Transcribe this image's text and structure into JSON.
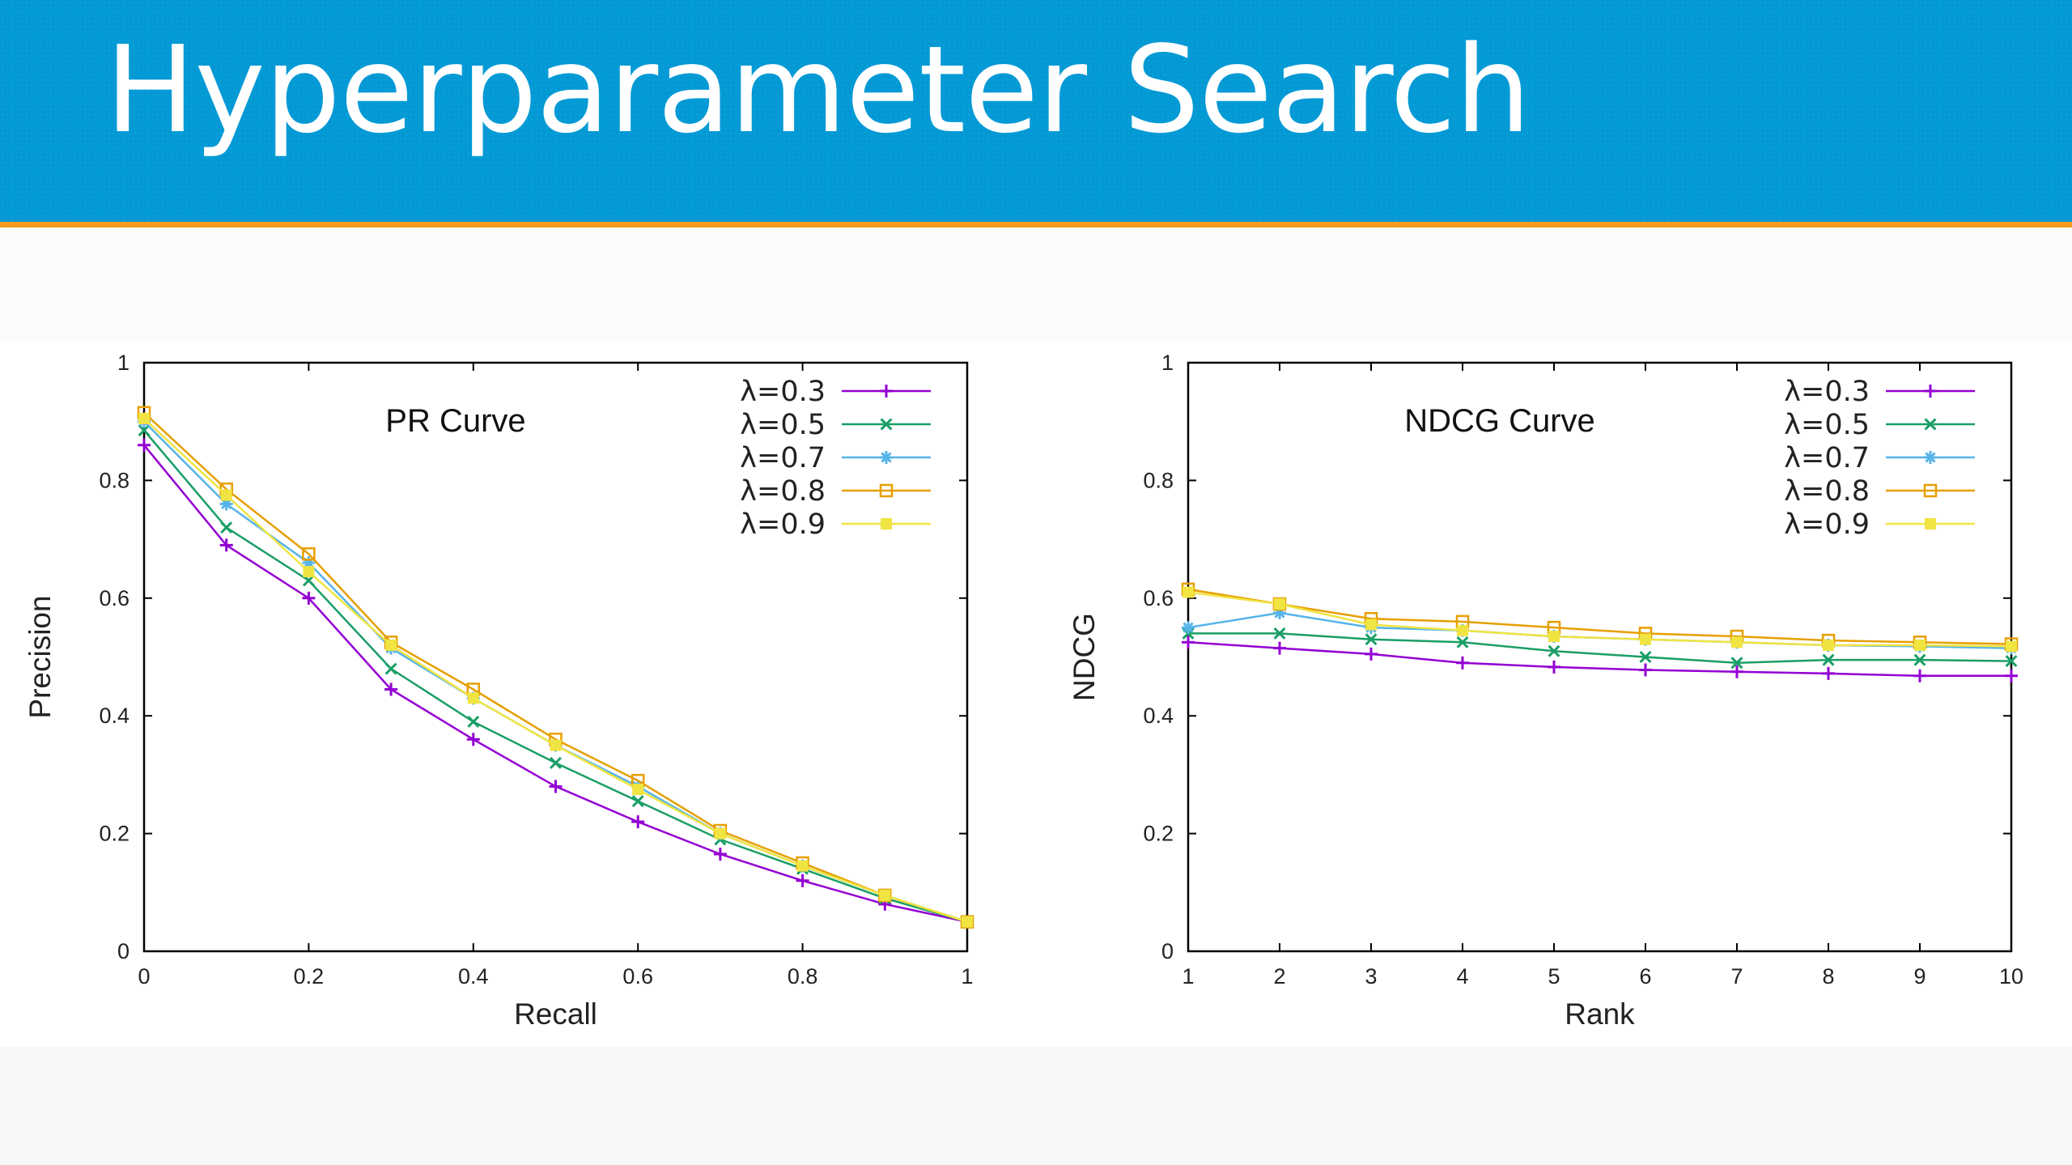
{
  "slide": {
    "title": "Hyperparameter Search"
  },
  "colors": {
    "header_bg": "#0299d5",
    "header_accent": "#f29b1c",
    "series": [
      "#9400d3",
      "#1a9e66",
      "#56b4e9",
      "#e69f00",
      "#f0e442"
    ]
  },
  "chart_data": [
    {
      "type": "line",
      "title": "PR Curve",
      "xlabel": "Recall",
      "ylabel": "Precision",
      "xlim": [
        0,
        1
      ],
      "ylim": [
        0,
        1
      ],
      "xticks": [
        "0",
        "0.2",
        "0.4",
        "0.6",
        "0.8",
        "1"
      ],
      "xtick_values": [
        0,
        0.2,
        0.4,
        0.6,
        0.8,
        1
      ],
      "yticks": [
        "0",
        "0.2",
        "0.4",
        "0.6",
        "0.8",
        "1"
      ],
      "ytick_values": [
        0,
        0.2,
        0.4,
        0.6,
        0.8,
        1
      ],
      "grid": false,
      "legend_position": "top-right",
      "x": [
        0,
        0.1,
        0.2,
        0.3,
        0.4,
        0.5,
        0.6,
        0.7,
        0.8,
        0.9,
        1.0
      ],
      "series": [
        {
          "name": "λ=0.3",
          "marker": "plus",
          "color": "#9400d3",
          "values": [
            0.86,
            0.69,
            0.6,
            0.445,
            0.36,
            0.28,
            0.22,
            0.165,
            0.12,
            0.08,
            0.05
          ]
        },
        {
          "name": "λ=0.5",
          "marker": "cross",
          "color": "#1a9e66",
          "values": [
            0.885,
            0.72,
            0.63,
            0.48,
            0.39,
            0.32,
            0.255,
            0.19,
            0.14,
            0.09,
            0.05
          ]
        },
        {
          "name": "λ=0.7",
          "marker": "star",
          "color": "#56b4e9",
          "values": [
            0.9,
            0.76,
            0.66,
            0.515,
            0.43,
            0.35,
            0.28,
            0.2,
            0.145,
            0.095,
            0.05
          ]
        },
        {
          "name": "λ=0.8",
          "marker": "open-square",
          "color": "#e69f00",
          "values": [
            0.915,
            0.785,
            0.675,
            0.525,
            0.445,
            0.36,
            0.29,
            0.205,
            0.15,
            0.095,
            0.05
          ]
        },
        {
          "name": "λ=0.9",
          "marker": "filled-square",
          "color": "#f0e442",
          "values": [
            0.905,
            0.775,
            0.645,
            0.52,
            0.43,
            0.35,
            0.275,
            0.2,
            0.145,
            0.095,
            0.05
          ]
        }
      ]
    },
    {
      "type": "line",
      "title": "NDCG Curve",
      "xlabel": "Rank",
      "ylabel": "NDCG",
      "xlim": [
        1,
        10
      ],
      "ylim": [
        0,
        1
      ],
      "xticks": [
        "1",
        "2",
        "3",
        "4",
        "5",
        "6",
        "7",
        "8",
        "9",
        "10"
      ],
      "xtick_values": [
        1,
        2,
        3,
        4,
        5,
        6,
        7,
        8,
        9,
        10
      ],
      "yticks": [
        "0",
        "0.2",
        "0.4",
        "0.6",
        "0.8",
        "1"
      ],
      "ytick_values": [
        0,
        0.2,
        0.4,
        0.6,
        0.8,
        1
      ],
      "grid": false,
      "legend_position": "top-right",
      "x": [
        1,
        2,
        3,
        4,
        5,
        6,
        7,
        8,
        9,
        10
      ],
      "series": [
        {
          "name": "λ=0.3",
          "marker": "plus",
          "color": "#9400d3",
          "values": [
            0.525,
            0.515,
            0.505,
            0.49,
            0.483,
            0.478,
            0.475,
            0.472,
            0.468,
            0.468
          ]
        },
        {
          "name": "λ=0.5",
          "marker": "cross",
          "color": "#1a9e66",
          "values": [
            0.54,
            0.54,
            0.53,
            0.525,
            0.51,
            0.5,
            0.49,
            0.495,
            0.495,
            0.493
          ]
        },
        {
          "name": "λ=0.7",
          "marker": "star",
          "color": "#56b4e9",
          "values": [
            0.55,
            0.575,
            0.55,
            0.545,
            0.535,
            0.53,
            0.525,
            0.52,
            0.518,
            0.515
          ]
        },
        {
          "name": "λ=0.8",
          "marker": "open-square",
          "color": "#e69f00",
          "values": [
            0.615,
            0.59,
            0.565,
            0.56,
            0.55,
            0.54,
            0.535,
            0.528,
            0.525,
            0.522
          ]
        },
        {
          "name": "λ=0.9",
          "marker": "filled-square",
          "color": "#f0e442",
          "values": [
            0.61,
            0.59,
            0.555,
            0.545,
            0.535,
            0.53,
            0.525,
            0.52,
            0.52,
            0.518
          ]
        }
      ]
    }
  ]
}
